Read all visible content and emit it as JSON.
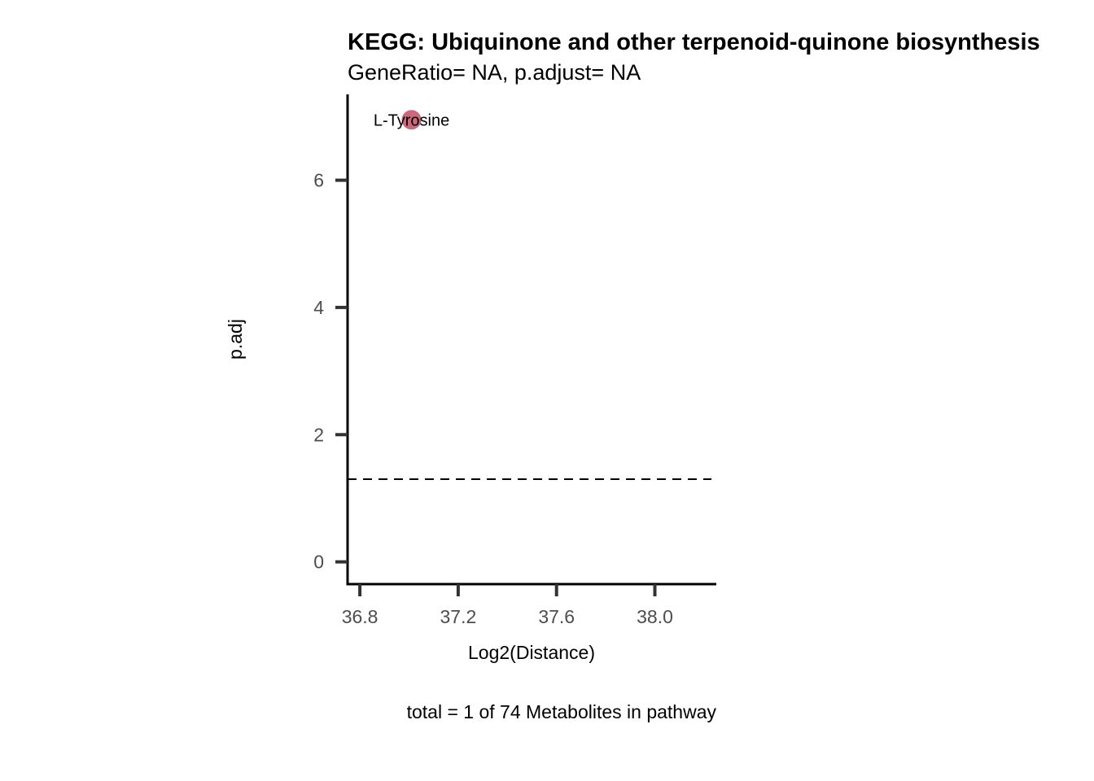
{
  "chart_data": {
    "type": "scatter",
    "title": "KEGG: Ubiquinone and other terpenoid-quinone biosynthesis",
    "subtitle": "GeneRatio= NA, p.adjust= NA",
    "xlabel": "Log2(Distance)",
    "ylabel": "p.adj",
    "caption": "total = 1 of 74 Metabolites in pathway",
    "xlim": [
      36.75,
      38.25
    ],
    "ylim": [
      -0.35,
      7.35
    ],
    "x_ticks": [
      36.8,
      37.2,
      37.6,
      38.0
    ],
    "x_tick_labels": [
      "36.8",
      "37.2",
      "37.6",
      "38.0"
    ],
    "y_ticks": [
      0,
      2,
      4,
      6
    ],
    "y_tick_labels": [
      "0",
      "2",
      "4",
      "6"
    ],
    "threshold_line": {
      "y": 1.3,
      "style": "dashed"
    },
    "points": [
      {
        "x": 37.01,
        "y": 6.95,
        "label": "L-Tyrosine"
      }
    ],
    "point_color": "#c75b6e",
    "grid": false,
    "legend": "none"
  }
}
